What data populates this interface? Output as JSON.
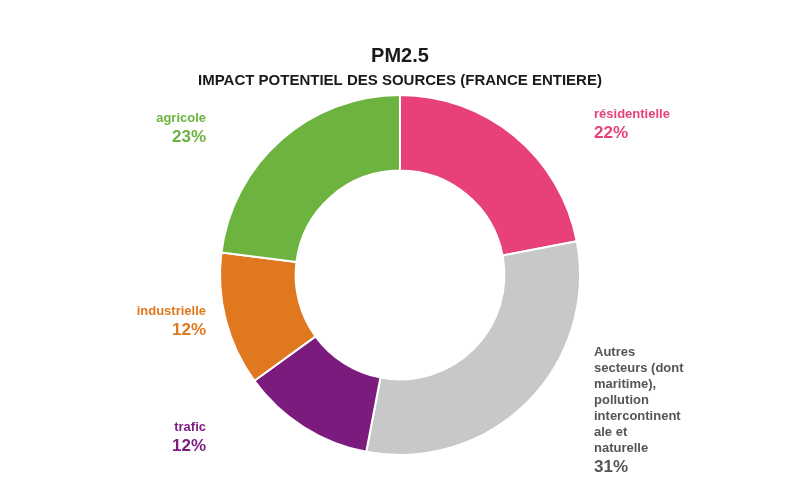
{
  "chart_data": {
    "type": "doughnut",
    "title": "PM2.5",
    "subtitle": "IMPACT POTENTIEL DES SOURCES (FRANCE ENTIERE)",
    "categories": [
      "résidentielle",
      "Autres\nsecteurs (dont\nmaritime),\npollution\nintercontinent\nale et\nnaturelle",
      "trafic",
      "industrielle",
      "agricole"
    ],
    "values": [
      22,
      31,
      12,
      12,
      23
    ],
    "value_labels": [
      "22%",
      "31%",
      "12%",
      "12%",
      "23%"
    ],
    "colors": [
      "#E8407A",
      "#C8C8C8",
      "#7B1B7E",
      "#E07820",
      "#6DB33F"
    ],
    "data_labels": true
  }
}
